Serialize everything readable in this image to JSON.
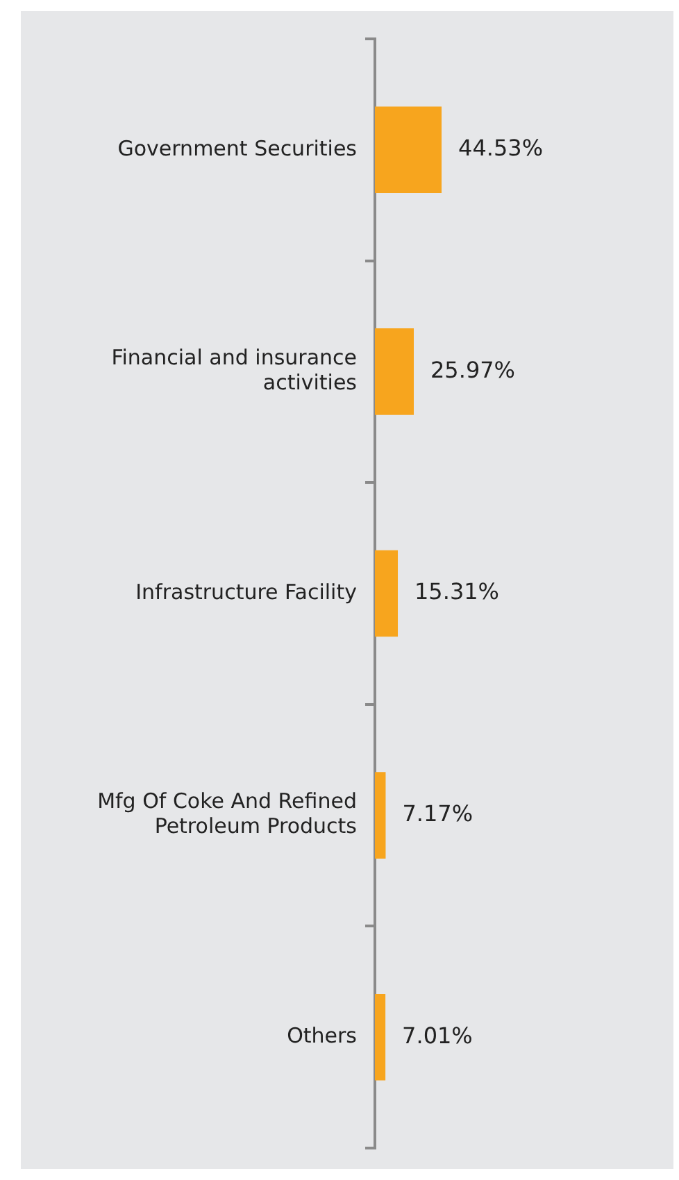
{
  "chart_data": {
    "type": "bar",
    "orientation": "horizontal",
    "categories": [
      "Government Securities",
      "Financial and insurance activities",
      "Infrastructure Facility",
      "Mfg Of Coke And Refined Petroleum Products",
      "Others"
    ],
    "series": [
      {
        "color": "#f7a51e",
        "values": [
          44.53,
          25.97,
          15.31,
          7.17,
          7.01
        ],
        "value_labels": [
          "44.53%",
          "25.97%",
          "15.31%",
          "7.17%",
          "7.01%"
        ]
      }
    ],
    "tick_labels": "y",
    "grid": false,
    "legend": false
  }
}
